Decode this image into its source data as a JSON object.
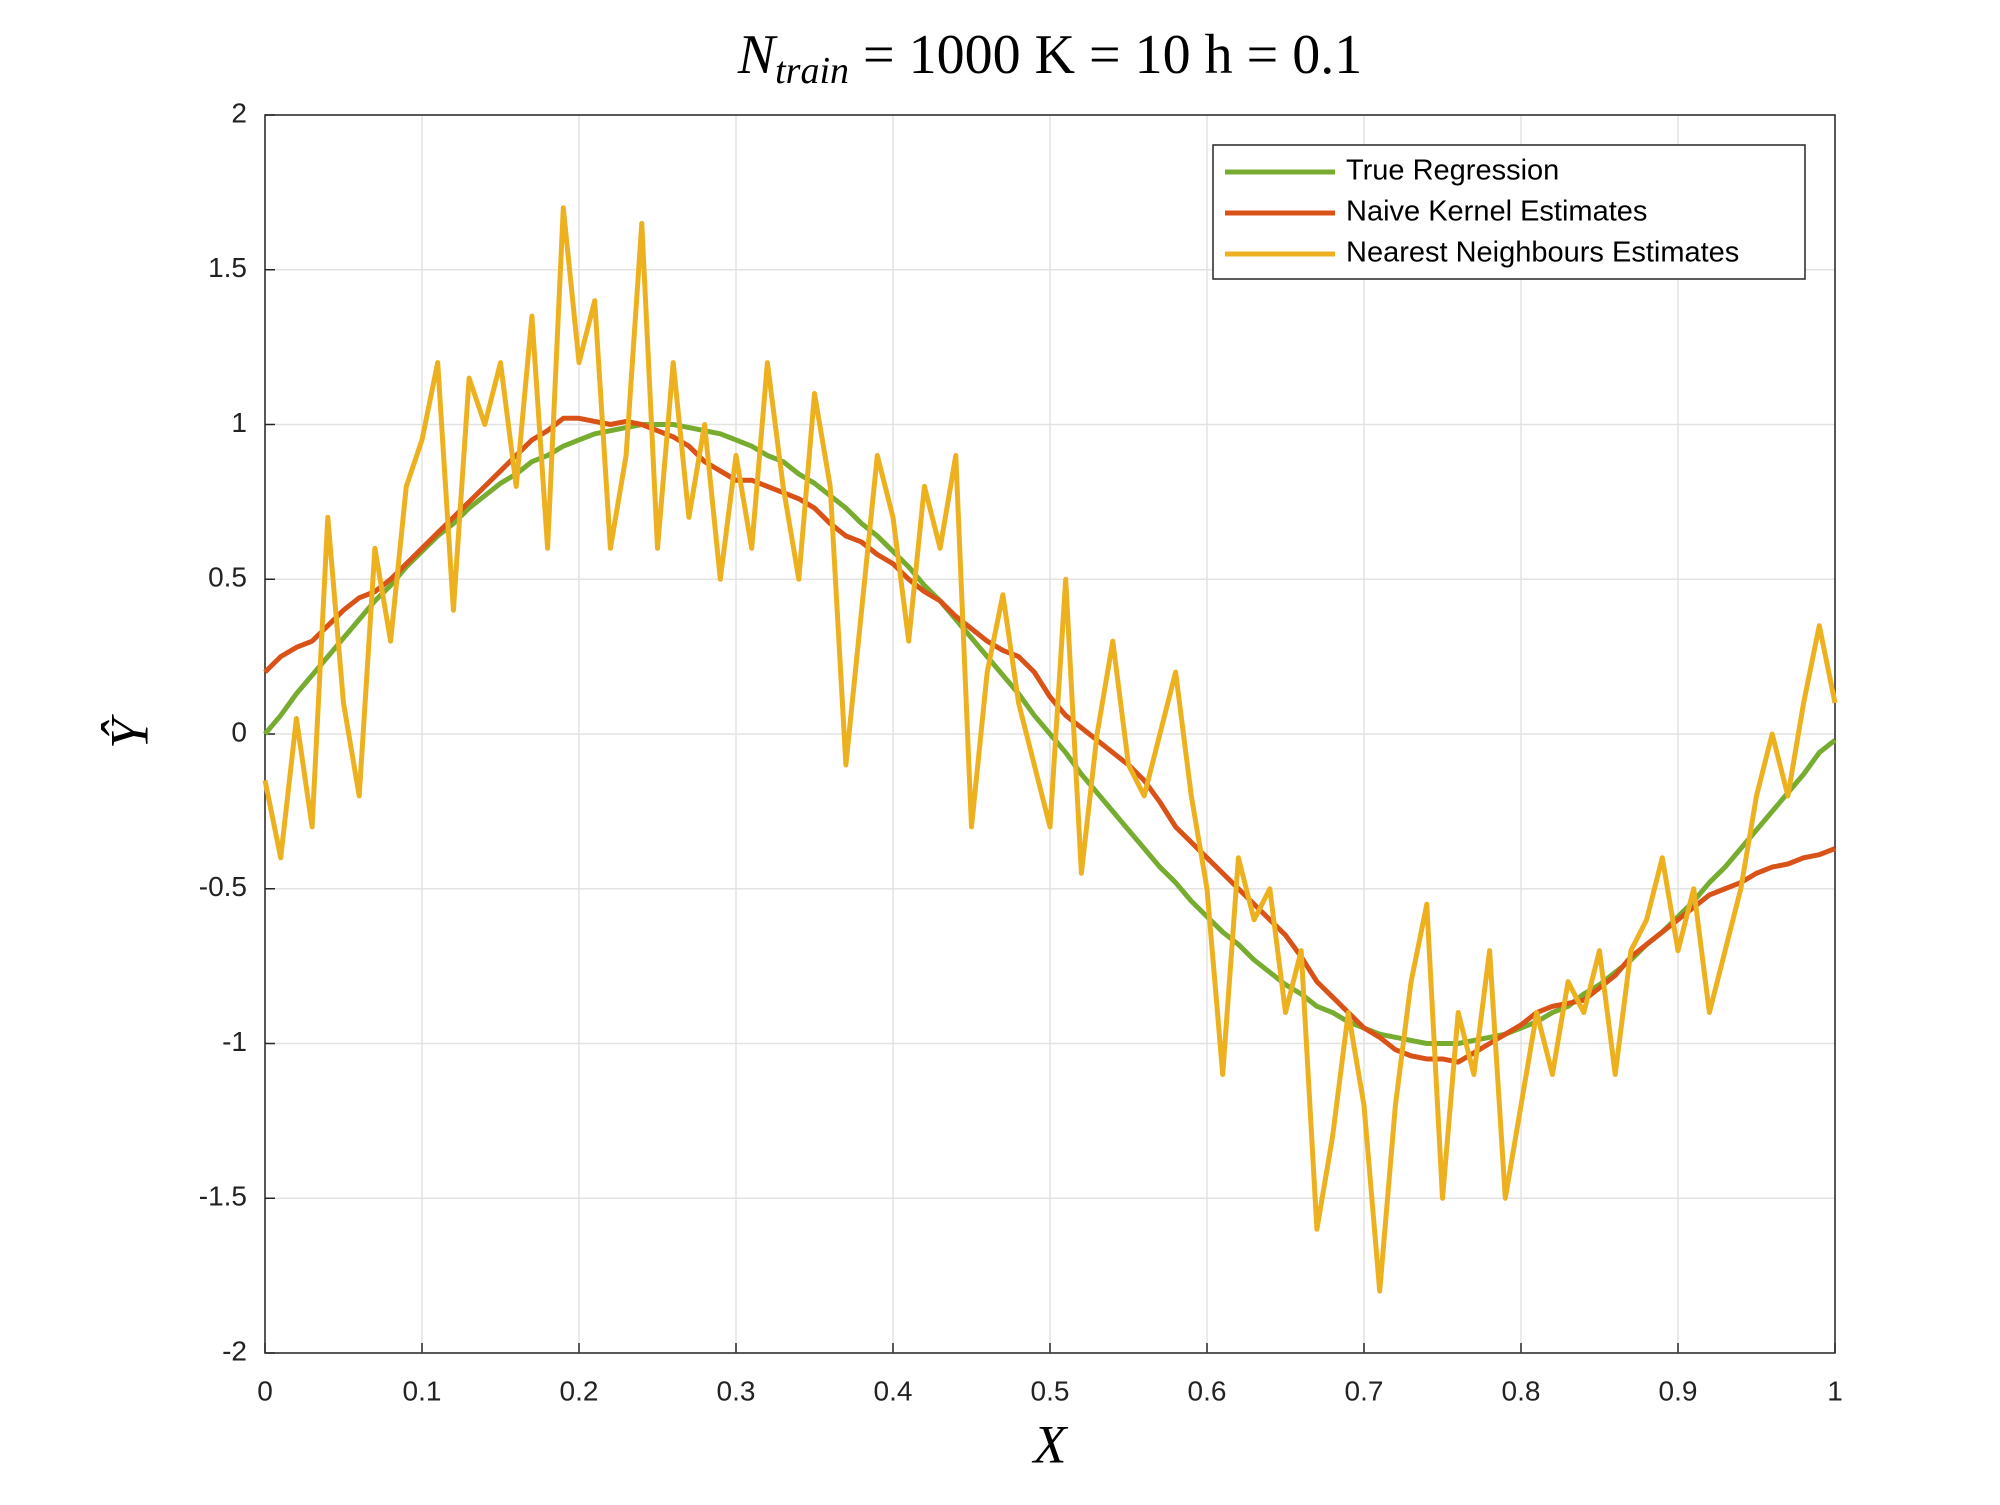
{
  "chart_data": {
    "type": "line",
    "title": {
      "main": "N",
      "sub": "train",
      "rest": "= 1000 K = 10 h = 0.1"
    },
    "x_label": "X",
    "y_label": "Ŷ",
    "x": [
      0,
      0.01,
      0.02,
      0.03,
      0.04,
      0.05,
      0.06,
      0.07,
      0.08,
      0.09,
      0.1,
      0.11,
      0.12,
      0.13,
      0.14,
      0.15,
      0.16,
      0.17,
      0.18,
      0.19,
      0.2,
      0.21,
      0.22,
      0.23,
      0.24,
      0.25,
      0.26,
      0.27,
      0.28,
      0.29,
      0.3,
      0.31,
      0.32,
      0.33,
      0.34,
      0.35,
      0.36,
      0.37,
      0.38,
      0.39,
      0.4,
      0.41,
      0.42,
      0.43,
      0.44,
      0.45,
      0.46,
      0.47,
      0.48,
      0.49,
      0.5,
      0.51,
      0.52,
      0.53,
      0.54,
      0.55,
      0.56,
      0.57,
      0.58,
      0.59,
      0.6,
      0.61,
      0.62,
      0.63,
      0.64,
      0.65,
      0.66,
      0.67,
      0.68,
      0.69,
      0.7,
      0.71,
      0.72,
      0.73,
      0.74,
      0.75,
      0.76,
      0.77,
      0.78,
      0.79,
      0.8,
      0.81,
      0.82,
      0.83,
      0.84,
      0.85,
      0.86,
      0.87,
      0.88,
      0.89,
      0.9,
      0.91,
      0.92,
      0.93,
      0.94,
      0.95,
      0.96,
      0.97,
      0.98,
      0.99,
      1
    ],
    "series": [
      {
        "name": "True Regression",
        "color": "#77ac30",
        "values": [
          0,
          0.06,
          0.13,
          0.19,
          0.25,
          0.31,
          0.37,
          0.43,
          0.48,
          0.54,
          0.59,
          0.64,
          0.68,
          0.73,
          0.77,
          0.81,
          0.84,
          0.88,
          0.9,
          0.93,
          0.95,
          0.97,
          0.98,
          0.99,
          1,
          1,
          1,
          0.99,
          0.98,
          0.97,
          0.95,
          0.93,
          0.9,
          0.88,
          0.84,
          0.81,
          0.77,
          0.73,
          0.68,
          0.64,
          0.59,
          0.54,
          0.48,
          0.43,
          0.37,
          0.31,
          0.25,
          0.19,
          0.13,
          0.06,
          0,
          -0.06,
          -0.13,
          -0.19,
          -0.25,
          -0.31,
          -0.37,
          -0.43,
          -0.48,
          -0.54,
          -0.59,
          -0.64,
          -0.68,
          -0.73,
          -0.77,
          -0.81,
          -0.84,
          -0.88,
          -0.9,
          -0.93,
          -0.95,
          -0.97,
          -0.98,
          -0.99,
          -1,
          -1,
          -1,
          -0.99,
          -0.98,
          -0.97,
          -0.95,
          -0.93,
          -0.9,
          -0.88,
          -0.84,
          -0.81,
          -0.77,
          -0.73,
          -0.68,
          -0.64,
          -0.59,
          -0.54,
          -0.48,
          -0.43,
          -0.37,
          -0.31,
          -0.25,
          -0.19,
          -0.13,
          -0.06,
          -0.02
        ]
      },
      {
        "name": "Naive Kernel Estimates",
        "color": "#d95319",
        "values": [
          0.2,
          0.25,
          0.28,
          0.3,
          0.35,
          0.4,
          0.44,
          0.46,
          0.5,
          0.55,
          0.6,
          0.65,
          0.7,
          0.75,
          0.8,
          0.85,
          0.9,
          0.95,
          0.98,
          1.02,
          1.02,
          1.01,
          1,
          1.01,
          1,
          0.98,
          0.96,
          0.93,
          0.88,
          0.85,
          0.82,
          0.82,
          0.8,
          0.78,
          0.76,
          0.73,
          0.68,
          0.64,
          0.62,
          0.58,
          0.55,
          0.5,
          0.46,
          0.43,
          0.38,
          0.34,
          0.3,
          0.27,
          0.25,
          0.2,
          0.12,
          0.06,
          0.02,
          -0.02,
          -0.06,
          -0.1,
          -0.15,
          -0.22,
          -0.3,
          -0.35,
          -0.4,
          -0.45,
          -0.5,
          -0.55,
          -0.6,
          -0.65,
          -0.72,
          -0.8,
          -0.85,
          -0.9,
          -0.95,
          -0.98,
          -1.02,
          -1.04,
          -1.05,
          -1.05,
          -1.06,
          -1.03,
          -1,
          -0.97,
          -0.94,
          -0.9,
          -0.88,
          -0.87,
          -0.86,
          -0.82,
          -0.78,
          -0.72,
          -0.68,
          -0.64,
          -0.6,
          -0.56,
          -0.52,
          -0.5,
          -0.48,
          -0.45,
          -0.43,
          -0.42,
          -0.4,
          -0.39,
          -0.37
        ]
      },
      {
        "name": "Nearest Neighbours Estimates",
        "color": "#edb120",
        "values": [
          -0.15,
          -0.4,
          0.05,
          -0.3,
          0.7,
          0.1,
          -0.2,
          0.6,
          0.3,
          0.8,
          0.95,
          1.2,
          0.4,
          1.15,
          1,
          1.2,
          0.8,
          1.35,
          0.6,
          1.7,
          1.2,
          1.4,
          0.6,
          0.9,
          1.65,
          0.6,
          1.2,
          0.7,
          1,
          0.5,
          0.9,
          0.6,
          1.2,
          0.8,
          0.5,
          1.1,
          0.8,
          -0.1,
          0.4,
          0.9,
          0.7,
          0.3,
          0.8,
          0.6,
          0.9,
          -0.3,
          0.2,
          0.45,
          0.1,
          -0.1,
          -0.3,
          0.5,
          -0.45,
          0,
          0.3,
          -0.1,
          -0.2,
          0,
          0.2,
          -0.2,
          -0.5,
          -1.1,
          -0.4,
          -0.6,
          -0.5,
          -0.9,
          -0.7,
          -1.6,
          -1.3,
          -0.9,
          -1.2,
          -1.8,
          -1.2,
          -0.8,
          -0.55,
          -1.5,
          -0.9,
          -1.1,
          -0.7,
          -1.5,
          -1.2,
          -0.9,
          -1.1,
          -0.8,
          -0.9,
          -0.7,
          -1.1,
          -0.7,
          -0.6,
          -0.4,
          -0.7,
          -0.5,
          -0.9,
          -0.7,
          -0.5,
          -0.2,
          0,
          -0.2,
          0.1,
          0.35,
          0.1
        ]
      }
    ],
    "xlim": [
      0,
      1
    ],
    "ylim": [
      -2,
      2
    ],
    "xticks": [
      0,
      0.1,
      0.2,
      0.3,
      0.4,
      0.5,
      0.6,
      0.7,
      0.8,
      0.9,
      1
    ],
    "yticks": [
      -2,
      -1.5,
      -1,
      -0.5,
      0,
      0.5,
      1,
      1.5,
      2
    ],
    "grid": true,
    "legend": "upper right"
  }
}
